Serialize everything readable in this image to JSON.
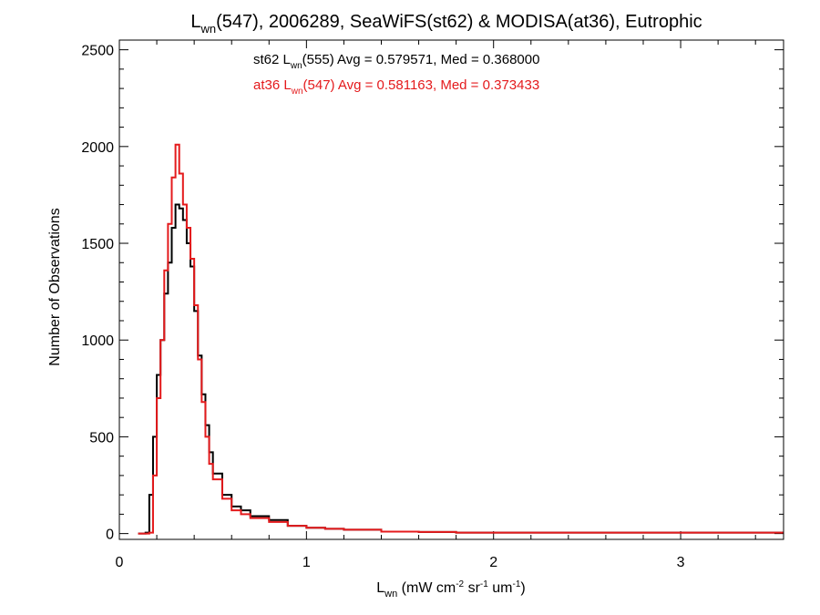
{
  "chart_data": {
    "type": "line",
    "title": {
      "base": "L",
      "sub": "wn",
      "rest": "(547), 2006289, SeaWiFS(st62) & MODISA(at36), Eutrophic"
    },
    "xlabel": {
      "base": "L",
      "sub": "wn",
      "pre": " (mW cm",
      "sup1": "-2",
      "mid1": " sr",
      "sup2": "-1",
      "mid2": " um",
      "sup3": "-1",
      "post": ")"
    },
    "ylabel": "Number of Observations",
    "xlim": [
      0,
      3.55
    ],
    "ylim": [
      -30,
      2550
    ],
    "x_ticks": [
      0,
      1,
      2,
      3
    ],
    "x_tick_labels": [
      "0",
      "1",
      "2",
      "3"
    ],
    "y_ticks": [
      0,
      500,
      1000,
      1500,
      2000,
      2500
    ],
    "y_tick_labels": [
      "0",
      "500",
      "1000",
      "1500",
      "2000",
      "2500"
    ],
    "grid": false,
    "annotations": [
      {
        "series": "st62",
        "color": "#000000",
        "prefix": "st62 L",
        "sub": "wn",
        "suffix": "(555) Avg = 0.579571, Med = 0.368000"
      },
      {
        "series": "at36",
        "color": "#e41a1c",
        "prefix": "at36 L",
        "sub": "wn",
        "suffix": "(547) Avg = 0.581163, Med = 0.373433"
      }
    ],
    "series": [
      {
        "name": "st62",
        "color": "#000000",
        "style": "step",
        "x": [
          0.1,
          0.14,
          0.16,
          0.18,
          0.2,
          0.22,
          0.24,
          0.26,
          0.28,
          0.3,
          0.32,
          0.34,
          0.36,
          0.38,
          0.4,
          0.42,
          0.44,
          0.46,
          0.48,
          0.5,
          0.55,
          0.6,
          0.65,
          0.7,
          0.8,
          0.9,
          1.0,
          1.1,
          1.2,
          1.4,
          1.6,
          1.8,
          2.0,
          2.5,
          3.0,
          3.55
        ],
        "values": [
          0,
          5,
          200,
          500,
          820,
          1000,
          1240,
          1400,
          1580,
          1700,
          1680,
          1620,
          1500,
          1380,
          1150,
          920,
          720,
          560,
          420,
          310,
          200,
          140,
          120,
          90,
          70,
          40,
          30,
          25,
          20,
          10,
          8,
          5,
          5,
          5,
          5,
          5
        ]
      },
      {
        "name": "at36",
        "color": "#e41a1c",
        "style": "step",
        "x": [
          0.1,
          0.16,
          0.18,
          0.2,
          0.22,
          0.24,
          0.26,
          0.28,
          0.3,
          0.32,
          0.34,
          0.36,
          0.38,
          0.4,
          0.42,
          0.44,
          0.46,
          0.48,
          0.5,
          0.55,
          0.6,
          0.65,
          0.7,
          0.8,
          0.9,
          1.0,
          1.1,
          1.2,
          1.4,
          1.6,
          1.8,
          2.0,
          2.5,
          3.0,
          3.55
        ],
        "values": [
          0,
          5,
          300,
          700,
          1000,
          1360,
          1600,
          1840,
          2010,
          1860,
          1700,
          1580,
          1420,
          1180,
          900,
          680,
          500,
          360,
          280,
          180,
          120,
          100,
          80,
          60,
          40,
          30,
          25,
          20,
          10,
          8,
          5,
          5,
          5,
          5,
          5
        ]
      }
    ]
  }
}
